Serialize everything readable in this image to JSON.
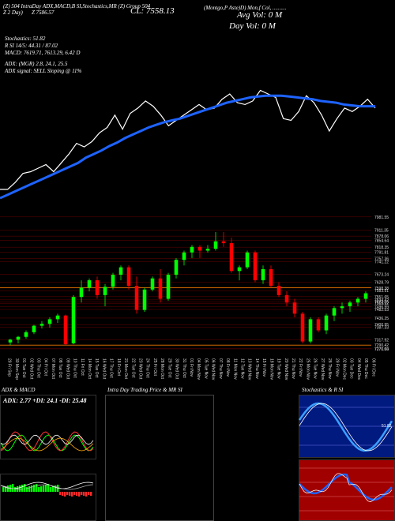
{
  "header": {
    "line1": "(Z) 504 IntraDay ADX,MACD,B SI,Stochastics,MR (Z) Group 504",
    "line2_left": "Z 2 Day)",
    "line2_mid": "Z 7586.57",
    "close_label": "CL: 7558.13",
    "right_title": "(Montgo,P Aste)D) Mon,f Col, ..........",
    "avg_vol": "Avg Vol: 0   M",
    "day_vol": "Day Vol: 0   M"
  },
  "indicators": {
    "stochastics": "Stochastics: 51.82",
    "rsi": "R              SI 14/5: 44.31 / 87.02",
    "macd": "MACD: 7619.71, 7613.29, 6.42  D",
    "adx": "ADX:                           (MGR) 2.8, 24.1, 25.5",
    "adx_signal": "ADX  signal: SELL  Sloping @ 11%"
  },
  "price_axis_labels": [
    "7981.55",
    "7911.35",
    "7878.06",
    "7854.64",
    "7818.35",
    "7791.81",
    "7757.36",
    "7741.22",
    "7673.24",
    "7628.79",
    "7598.38",
    "7583.91",
    "7551.65",
    "7534.42",
    "7523.55",
    "7515.92",
    "7496.99",
    "7482.53",
    "7436.25",
    "7400.95",
    "7387.33",
    "7317.92",
    "7290.42",
    "7270.66",
    "7270.59"
  ],
  "date_labels": [
    "29 Fri Sep",
    "30 Mon Sep",
    "01 Tue Oct",
    "02 Wed Oct",
    "03 Thu Oct",
    "04 Fri Oct",
    "07 Mon Oct",
    "08 Tue Oct",
    "09 Wed Oct",
    "10 Thu Oct",
    "11 Fri Oct",
    "14 Mon Oct",
    "15 Tue Oct",
    "16 Wed Oct",
    "17 Thu Oct",
    "18 Fri Oct",
    "21 Mon Oct",
    "22 Tue Oct",
    "23 Wed Oct",
    "24 Thu Oct",
    "25 Fri Oct",
    "28 Mon Oct",
    "29 Tue Oct",
    "30 Wed Oct",
    "31 Thu Oct",
    "01 Fri Nov",
    "04 Mon Nov",
    "05 Tue Nov",
    "06 Wed Nov",
    "07 Thu Nov",
    "08 Fri Nov",
    "11 Mon Nov",
    "12 Tue Nov",
    "13 Wed Nov",
    "14 Thu Nov",
    "15 Fri Nov",
    "18 Mon Nov",
    "19 Tue Nov",
    "20 Wed Nov",
    "21 Thu Nov",
    "22 Fri Nov",
    "25 Mon Nov",
    "26 Tue Nov",
    "27 Wed Nov",
    "28 Thu Nov",
    "29 Fri Nov",
    "02 Mon Dec",
    "03 Tue Dec",
    "04 Wed Dec",
    "05 Thu Dec",
    "06 Fri Dec"
  ],
  "panels": {
    "adx_macd": {
      "title": "ADX  & MACD",
      "readout": "ADX: 2.77 +DI: 24.1 -DI: 25.48"
    },
    "intraday": {
      "title": "Intra  Day Trading Price  & MR              SI"
    },
    "stoch_rsi": {
      "title": "Stochastics & R              SI",
      "right_value": "51.82"
    }
  },
  "chart_data": {
    "type": "candlestick",
    "price_ylim": [
      7270,
      7985
    ],
    "closes_top": [
      7300,
      7300,
      7340,
      7390,
      7400,
      7420,
      7440,
      7400,
      7450,
      7500,
      7560,
      7540,
      7570,
      7620,
      7650,
      7720,
      7640,
      7730,
      7760,
      7800,
      7770,
      7720,
      7660,
      7690,
      7720,
      7750,
      7780,
      7750,
      7760,
      7810,
      7840,
      7790,
      7780,
      7800,
      7860,
      7840,
      7820,
      7700,
      7690,
      7740,
      7830,
      7790,
      7720,
      7630,
      7700,
      7760,
      7740,
      7770,
      7810,
      7760
    ],
    "ema_top": [
      7250,
      7270,
      7290,
      7310,
      7330,
      7350,
      7370,
      7390,
      7410,
      7430,
      7450,
      7480,
      7500,
      7520,
      7545,
      7565,
      7590,
      7610,
      7630,
      7650,
      7665,
      7680,
      7690,
      7700,
      7715,
      7730,
      7745,
      7760,
      7775,
      7790,
      7800,
      7810,
      7820,
      7825,
      7830,
      7830,
      7830,
      7825,
      7820,
      7815,
      7810,
      7800,
      7795,
      7790,
      7780,
      7775,
      7770,
      7770,
      7770
    ],
    "candles": [
      {
        "o": 7305,
        "h": 7325,
        "l": 7290,
        "c": 7320
      },
      {
        "o": 7320,
        "h": 7340,
        "l": 7300,
        "c": 7335
      },
      {
        "o": 7335,
        "h": 7370,
        "l": 7325,
        "c": 7360
      },
      {
        "o": 7360,
        "h": 7400,
        "l": 7350,
        "c": 7395
      },
      {
        "o": 7395,
        "h": 7420,
        "l": 7380,
        "c": 7405
      },
      {
        "o": 7405,
        "h": 7440,
        "l": 7385,
        "c": 7430
      },
      {
        "o": 7430,
        "h": 7460,
        "l": 7410,
        "c": 7450
      },
      {
        "o": 7450,
        "h": 7455,
        "l": 7290,
        "c": 7295
      },
      {
        "o": 7300,
        "h": 7560,
        "l": 7295,
        "c": 7550
      },
      {
        "o": 7550,
        "h": 7640,
        "l": 7520,
        "c": 7600
      },
      {
        "o": 7600,
        "h": 7650,
        "l": 7580,
        "c": 7640
      },
      {
        "o": 7640,
        "h": 7660,
        "l": 7540,
        "c": 7560
      },
      {
        "o": 7560,
        "h": 7620,
        "l": 7500,
        "c": 7605
      },
      {
        "o": 7605,
        "h": 7680,
        "l": 7590,
        "c": 7670
      },
      {
        "o": 7670,
        "h": 7720,
        "l": 7640,
        "c": 7710
      },
      {
        "o": 7710,
        "h": 7720,
        "l": 7590,
        "c": 7610
      },
      {
        "o": 7610,
        "h": 7660,
        "l": 7460,
        "c": 7480
      },
      {
        "o": 7480,
        "h": 7600,
        "l": 7470,
        "c": 7590
      },
      {
        "o": 7590,
        "h": 7660,
        "l": 7580,
        "c": 7650
      },
      {
        "o": 7650,
        "h": 7700,
        "l": 7520,
        "c": 7540
      },
      {
        "o": 7540,
        "h": 7680,
        "l": 7530,
        "c": 7670
      },
      {
        "o": 7670,
        "h": 7760,
        "l": 7650,
        "c": 7750
      },
      {
        "o": 7750,
        "h": 7800,
        "l": 7720,
        "c": 7790
      },
      {
        "o": 7790,
        "h": 7830,
        "l": 7760,
        "c": 7820
      },
      {
        "o": 7820,
        "h": 7830,
        "l": 7760,
        "c": 7800
      },
      {
        "o": 7800,
        "h": 7830,
        "l": 7790,
        "c": 7810
      },
      {
        "o": 7810,
        "h": 7900,
        "l": 7800,
        "c": 7850
      },
      {
        "o": 7850,
        "h": 7900,
        "l": 7820,
        "c": 7840
      },
      {
        "o": 7840,
        "h": 7870,
        "l": 7680,
        "c": 7690
      },
      {
        "o": 7690,
        "h": 7720,
        "l": 7640,
        "c": 7710
      },
      {
        "o": 7710,
        "h": 7800,
        "l": 7700,
        "c": 7790
      },
      {
        "o": 7790,
        "h": 7800,
        "l": 7630,
        "c": 7640
      },
      {
        "o": 7640,
        "h": 7720,
        "l": 7620,
        "c": 7700
      },
      {
        "o": 7700,
        "h": 7720,
        "l": 7600,
        "c": 7610
      },
      {
        "o": 7610,
        "h": 7630,
        "l": 7550,
        "c": 7560
      },
      {
        "o": 7560,
        "h": 7580,
        "l": 7500,
        "c": 7520
      },
      {
        "o": 7520,
        "h": 7540,
        "l": 7440,
        "c": 7460
      },
      {
        "o": 7460,
        "h": 7470,
        "l": 7300,
        "c": 7310
      },
      {
        "o": 7310,
        "h": 7440,
        "l": 7300,
        "c": 7430
      },
      {
        "o": 7430,
        "h": 7440,
        "l": 7360,
        "c": 7370
      },
      {
        "o": 7370,
        "h": 7460,
        "l": 7350,
        "c": 7450
      },
      {
        "o": 7450,
        "h": 7500,
        "l": 7420,
        "c": 7490
      },
      {
        "o": 7490,
        "h": 7520,
        "l": 7460,
        "c": 7500
      },
      {
        "o": 7500,
        "h": 7530,
        "l": 7470,
        "c": 7520
      },
      {
        "o": 7520,
        "h": 7550,
        "l": 7500,
        "c": 7540
      },
      {
        "o": 7540,
        "h": 7580,
        "l": 7520,
        "c": 7570
      }
    ]
  },
  "colors": {
    "up": "#00ff00",
    "down": "#ff0000",
    "ema": "#1e63ff",
    "close_line": "#ffffff",
    "ref_line": "#cc6600",
    "rsi_bg": "#a00000",
    "stoch_bg": "#001a80"
  }
}
